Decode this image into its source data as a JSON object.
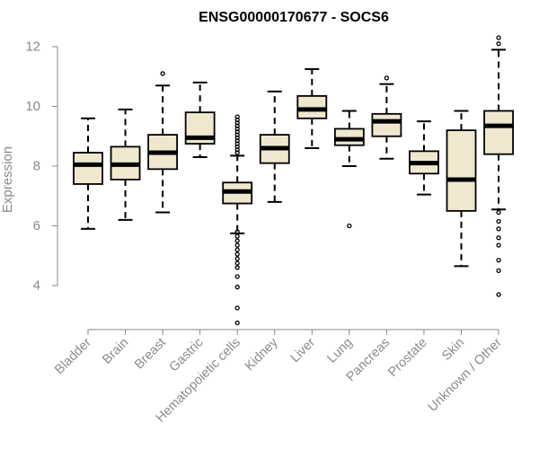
{
  "colors": {
    "box_fill": "#efe8cf",
    "stroke": "#000000",
    "axis": "#8a8a8a",
    "text": "#8a8a8a"
  },
  "chart_data": {
    "type": "boxplot",
    "title": "ENSG00000170677 - SOCS6",
    "xlabel": "",
    "ylabel": "Expression",
    "ylim": [
      2.5,
      12.5
    ],
    "yticks": [
      4,
      6,
      8,
      10,
      12
    ],
    "tick_labels": [
      "4",
      "6",
      "8",
      "10",
      "12"
    ],
    "categories": [
      "Bladder",
      "Brain",
      "Breast",
      "Gastric",
      "Hematopoietic cells",
      "Kidney",
      "Liver",
      "Lung",
      "Pancreas",
      "Prostate",
      "Skin",
      "Unknown / Other"
    ],
    "boxes": [
      {
        "whisker_low": 5.9,
        "q1": 7.4,
        "median": 8.05,
        "q3": 8.45,
        "whisker_high": 9.6,
        "outliers": []
      },
      {
        "whisker_low": 6.2,
        "q1": 7.55,
        "median": 8.05,
        "q3": 8.65,
        "whisker_high": 9.9,
        "outliers": []
      },
      {
        "whisker_low": 6.45,
        "q1": 7.9,
        "median": 8.45,
        "q3": 9.05,
        "whisker_high": 10.7,
        "outliers": [
          11.1
        ]
      },
      {
        "whisker_low": 8.3,
        "q1": 8.75,
        "median": 8.95,
        "q3": 9.8,
        "whisker_high": 10.8,
        "outliers": []
      },
      {
        "whisker_low": 5.75,
        "q1": 6.75,
        "median": 7.15,
        "q3": 7.45,
        "whisker_high": 8.35,
        "outliers": [
          2.75,
          3.25,
          3.95,
          4.3,
          4.6,
          4.75,
          4.9,
          5.05,
          5.2,
          5.35,
          5.5,
          5.65,
          5.8,
          8.45,
          8.55,
          8.65,
          8.75,
          8.85,
          8.95,
          9.05,
          9.15,
          9.25,
          9.35,
          9.45,
          9.55,
          9.65
        ]
      },
      {
        "whisker_low": 6.8,
        "q1": 8.1,
        "median": 8.6,
        "q3": 9.05,
        "whisker_high": 10.5,
        "outliers": []
      },
      {
        "whisker_low": 8.6,
        "q1": 9.6,
        "median": 9.9,
        "q3": 10.35,
        "whisker_high": 11.25,
        "outliers": []
      },
      {
        "whisker_low": 8.0,
        "q1": 8.7,
        "median": 8.9,
        "q3": 9.25,
        "whisker_high": 9.85,
        "outliers": [
          6.0
        ]
      },
      {
        "whisker_low": 8.25,
        "q1": 9.0,
        "median": 9.5,
        "q3": 9.75,
        "whisker_high": 10.75,
        "outliers": [
          10.95
        ]
      },
      {
        "whisker_low": 7.05,
        "q1": 7.75,
        "median": 8.1,
        "q3": 8.5,
        "whisker_high": 9.5,
        "outliers": []
      },
      {
        "whisker_low": 4.65,
        "q1": 6.5,
        "median": 7.55,
        "q3": 9.2,
        "whisker_high": 9.85,
        "outliers": []
      },
      {
        "whisker_low": 6.55,
        "q1": 8.4,
        "median": 9.35,
        "q3": 9.85,
        "whisker_high": 11.9,
        "outliers": [
          3.7,
          4.5,
          4.85,
          5.35,
          5.6,
          5.9,
          6.15,
          6.45,
          12.1,
          12.3
        ]
      }
    ]
  }
}
